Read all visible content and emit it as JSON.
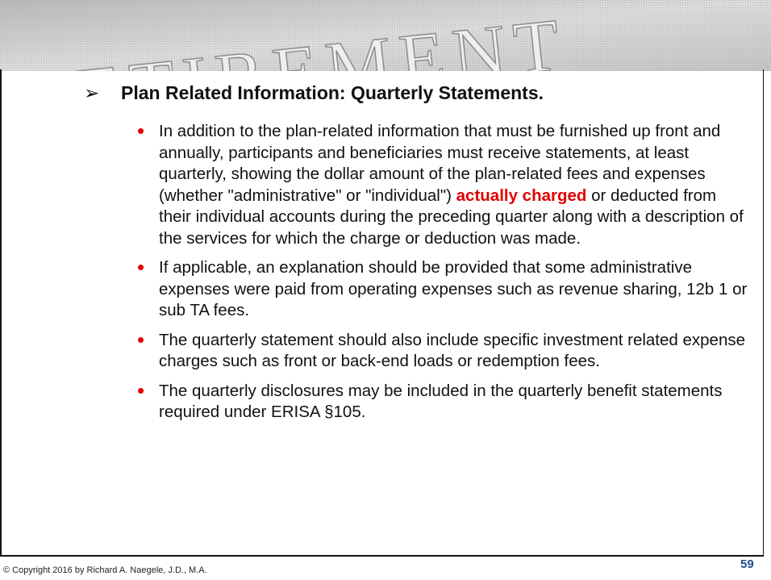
{
  "banner": {
    "text": "RETIREMENT"
  },
  "heading": "Plan Related Information:  Quarterly Statements.",
  "bullets": [
    {
      "parts": [
        "In addition to the plan-related information that must be furnished up front and annually, participants and beneficiaries must receive statements, at least quarterly, showing the dollar amount of the plan-related fees and expenses (whether \"administrative\" or \"individual\") ",
        "actually charged",
        " or deducted from their individual accounts during the preceding quarter along with a description of the services for which the charge or deduction was made."
      ],
      "highlight": 1
    },
    {
      "parts": [
        "If applicable, an explanation should be provided that some administrative expenses were paid from operating expenses such as revenue sharing, 12b 1 or sub TA fees."
      ]
    },
    {
      "parts": [
        "The quarterly statement should also include specific investment related expense charges such as front or back-end loads or redemption fees."
      ]
    },
    {
      "parts": [
        "The quarterly disclosures may be included in the quarterly benefit statements required under ERISA §105."
      ]
    }
  ],
  "footer": {
    "copyright": "© Copyright 2016 by Richard A. Naegele, J.D., M.A.",
    "page": "59"
  }
}
